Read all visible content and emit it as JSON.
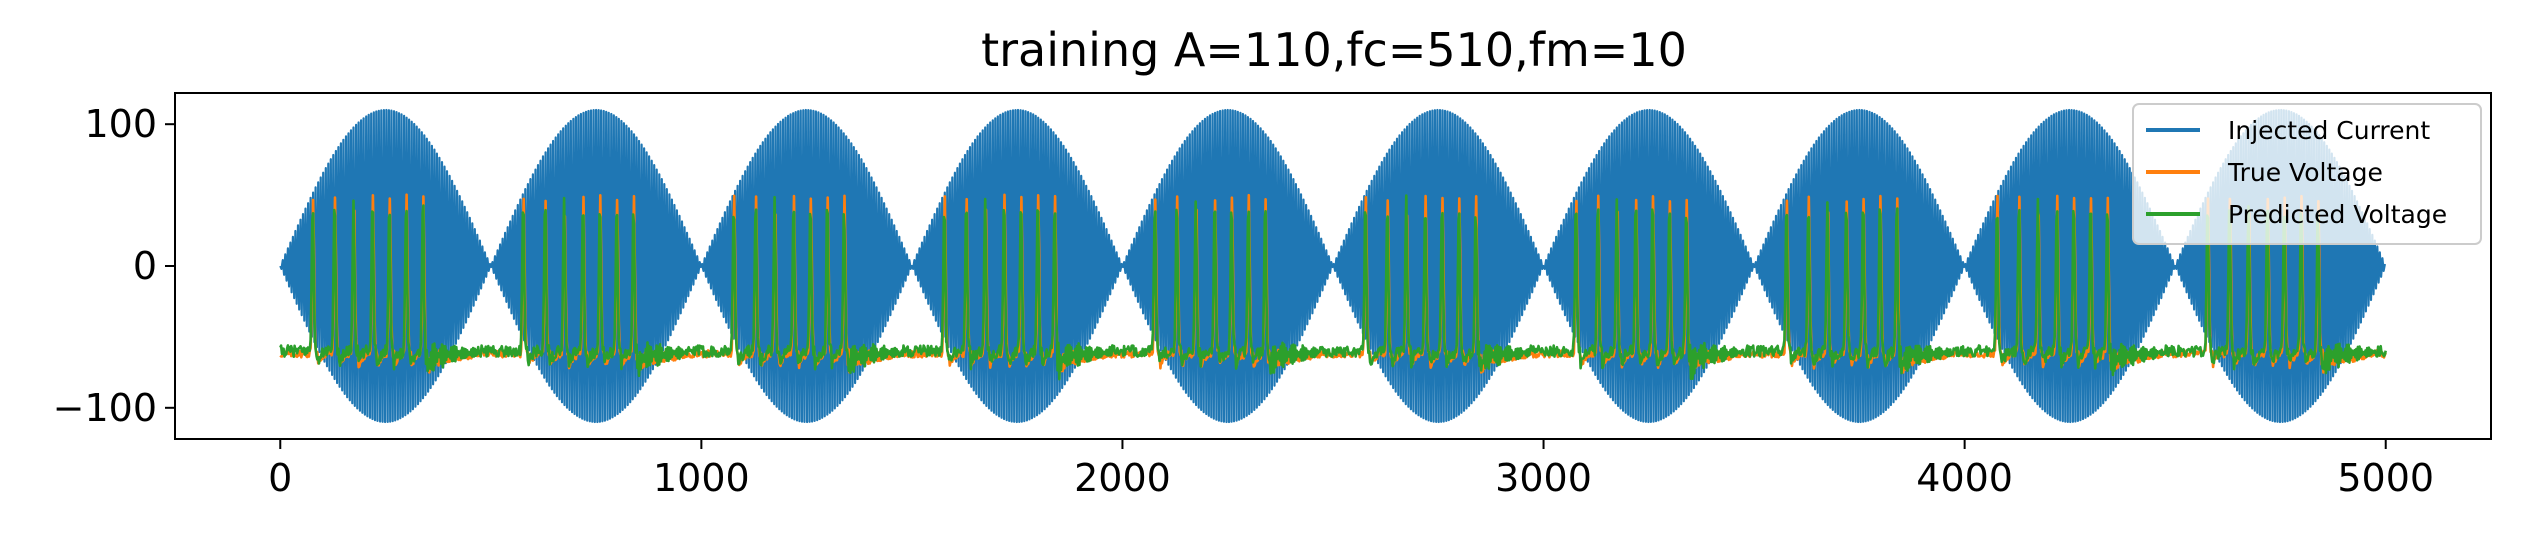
{
  "chart_data": {
    "type": "line",
    "title": "training A=110,fc=510,fm=10",
    "xlabel": "",
    "ylabel": "",
    "xlim": [
      -250,
      5250
    ],
    "ylim": [
      -122,
      122
    ],
    "x_ticks": [
      0,
      1000,
      2000,
      3000,
      4000,
      5000
    ],
    "x_tick_labels": [
      "0",
      "1000",
      "2000",
      "3000",
      "4000",
      "5000"
    ],
    "y_ticks": [
      100,
      0,
      -100
    ],
    "y_tick_labels": [
      "100",
      "0",
      "−100"
    ],
    "grid": false,
    "legend_position": "upper right",
    "series": [
      {
        "name": "Injected Current",
        "color": "#1f77b4",
        "x_range": [
          0,
          5000
        ],
        "description_kind": "amplitude-modulated carrier",
        "amplitude": 110,
        "envelope_period": 500,
        "envelope_peaks_at": [
          250,
          750,
          1250,
          1750,
          2250,
          2750,
          3250,
          3750,
          4250,
          4750
        ]
      },
      {
        "name": "True Voltage",
        "color": "#ff7f0e",
        "x_range": [
          0,
          5000
        ],
        "baseline": -62,
        "min": -75,
        "max": 48,
        "spike_period": 500
      },
      {
        "name": "Predicted Voltage",
        "color": "#2ca02c",
        "x_range": [
          0,
          5000
        ],
        "baseline": -60,
        "min": -88,
        "max": 48,
        "spike_period": 500
      }
    ]
  }
}
